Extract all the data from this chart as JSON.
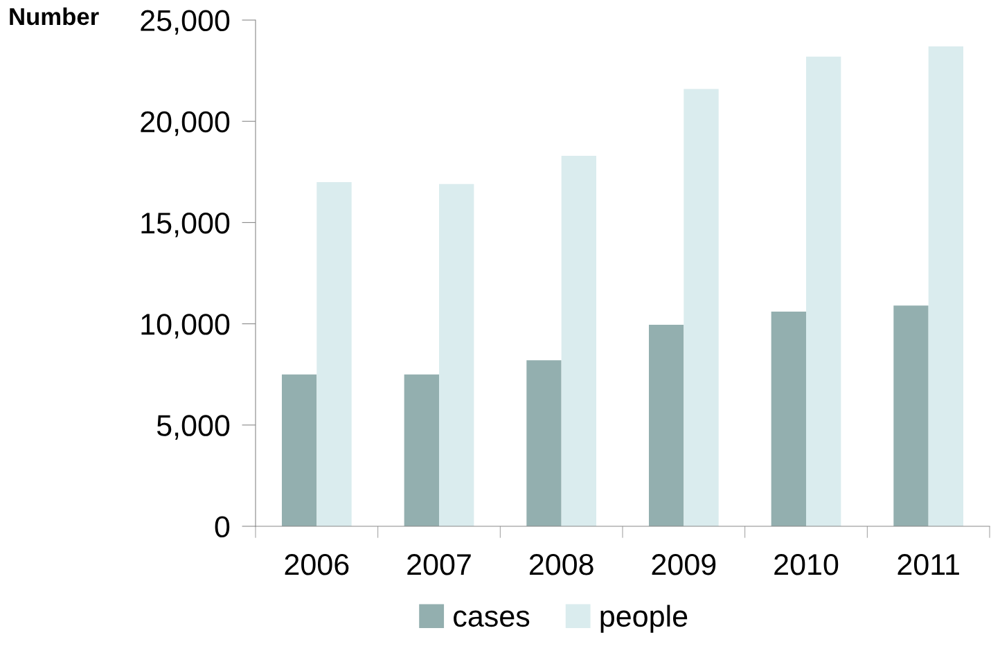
{
  "chart_data": {
    "type": "bar",
    "ylabel": "Number",
    "categories": [
      "2006",
      "2007",
      "2008",
      "2009",
      "2010",
      "2011"
    ],
    "series": [
      {
        "name": "cases",
        "color": "#93afaf",
        "values": [
          7500,
          7500,
          8200,
          9950,
          10600,
          10900
        ]
      },
      {
        "name": "people",
        "color": "#daecee",
        "values": [
          17000,
          16900,
          18300,
          21600,
          23200,
          23700
        ]
      }
    ],
    "ylim": [
      0,
      25000
    ],
    "yticks": [
      {
        "value": 0,
        "label": "0"
      },
      {
        "value": 5000,
        "label": "5,000"
      },
      {
        "value": 10000,
        "label": "10,000"
      },
      {
        "value": 15000,
        "label": "15,000"
      },
      {
        "value": 20000,
        "label": "20,000"
      },
      {
        "value": 25000,
        "label": "25,000"
      }
    ],
    "grid": false,
    "legend": "bottom"
  }
}
